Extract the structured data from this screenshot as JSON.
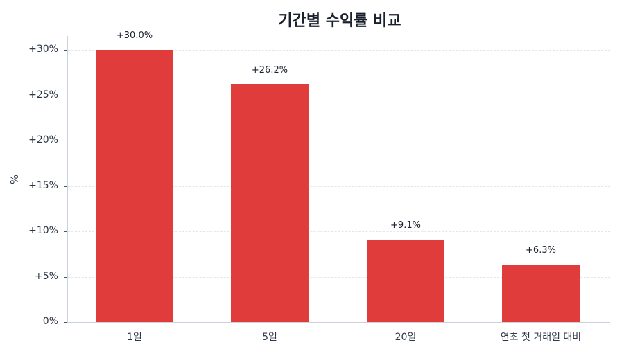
{
  "chart_data": {
    "type": "bar",
    "title": "기간별 수익률 비교",
    "xlabel": "",
    "ylabel": "%",
    "categories": [
      "1일",
      "5일",
      "20일",
      "연초 첫 거래일 대비"
    ],
    "values": [
      30.0,
      26.2,
      9.1,
      6.3
    ],
    "value_labels": [
      "+30.0%",
      "+26.2%",
      "+9.1%",
      "+6.3%"
    ],
    "ylim": [
      0,
      31.5
    ],
    "yticks": [
      0,
      5,
      10,
      15,
      20,
      25,
      30
    ],
    "ytick_labels": [
      "0%",
      "+5%",
      "+10%",
      "+15%",
      "+20%",
      "+25%",
      "+30%"
    ],
    "grid": true,
    "grid_style": "dashed horizontal",
    "legend": null,
    "bar_color": "#e03c3c"
  }
}
